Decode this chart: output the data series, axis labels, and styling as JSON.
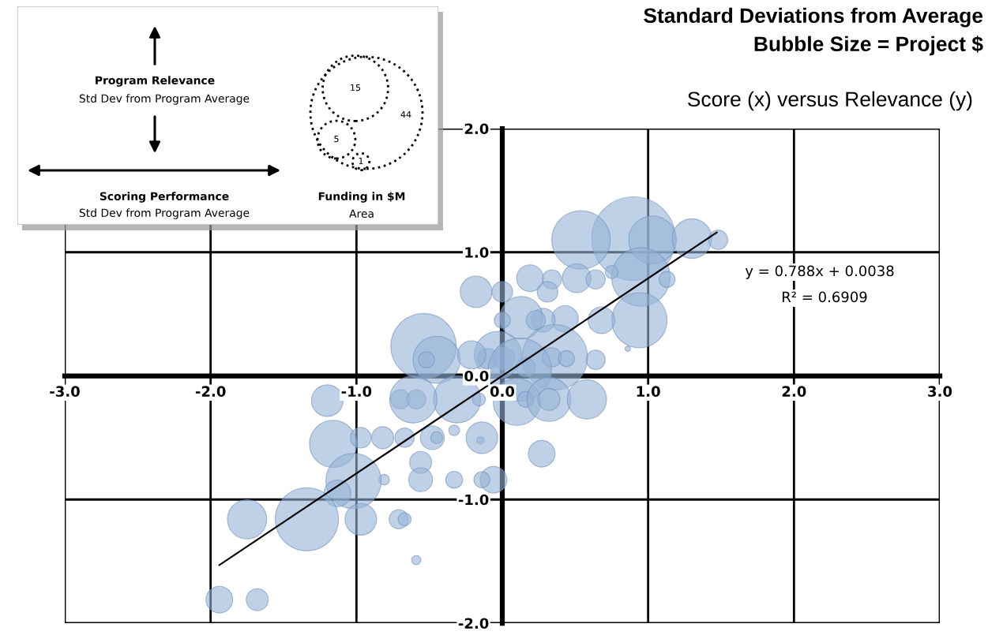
{
  "chart_data": {
    "type": "bubble",
    "title": "Standard Deviations from Average\nBubble Size = Project $",
    "subtitle": "Score (x) versus Relevance (y)",
    "xlabel": "Scoring Performance",
    "ylabel": "Program Relevance",
    "legend_title": "Funding in $M",
    "annotations": [
      "Std Dev from Program Average",
      "Std Dev from Program Average",
      "Area",
      "y = 0.788x + 0.0038",
      "R² = 0.6909"
    ],
    "size_legend": [
      44,
      15,
      5,
      1
    ],
    "xlim": [
      -3,
      3
    ],
    "ylim": [
      -2,
      2
    ],
    "xticks": [
      {
        "value": -3,
        "label": "-3.0"
      },
      {
        "value": -2,
        "label": "-2.0"
      },
      {
        "value": -1,
        "label": "-1.0"
      },
      {
        "value": 0,
        "label": "0.0"
      },
      {
        "value": 1,
        "label": "1.0"
      },
      {
        "value": 2,
        "label": "2.0"
      },
      {
        "value": 3,
        "label": "3.0"
      }
    ],
    "yticks": [
      {
        "value": -2,
        "label": "-2.0"
      },
      {
        "value": -1,
        "label": "-1.0"
      },
      {
        "value": 0,
        "label": "0.0"
      },
      {
        "value": 1,
        "label": "1.0"
      },
      {
        "value": 2,
        "label": "2.0"
      }
    ],
    "grid": true,
    "marker": "circle",
    "series": [
      {
        "color": "#95b3d7",
        "x": [
          0.9,
          0.54,
          1.03,
          1.3,
          1.48,
          0.95,
          0.51,
          0.64,
          0.75,
          1.13,
          0.94,
          0.68,
          0.43,
          0.28,
          0.64,
          0.86,
          0.34,
          0.31,
          -0.18,
          0.0,
          0.19,
          0.13,
          0.0,
          0.23,
          -0.54,
          -0.45,
          -0.52,
          -0.1,
          0.01,
          -0.03,
          0.36,
          0.34,
          0.44,
          0.16,
          -0.21,
          0.12,
          -0.31,
          -0.7,
          -0.59,
          -0.61,
          -0.16,
          0.1,
          0.16,
          0.32,
          0.32,
          0.58,
          -1.2,
          -1.16,
          -0.97,
          -0.82,
          -0.67,
          -0.48,
          -0.45,
          -0.33,
          -0.15,
          -0.14,
          0.27,
          -0.56,
          -0.56,
          -0.33,
          -0.06,
          -0.14,
          -0.81,
          -1.02,
          -1.13,
          -1.75,
          -1.34,
          -0.97,
          -0.71,
          -0.67,
          -0.59,
          -1.94,
          -1.68
        ],
        "values": [
          1.11,
          1.1,
          1.1,
          1.11,
          1.1,
          0.8,
          0.79,
          0.78,
          0.84,
          0.78,
          0.45,
          0.45,
          0.46,
          0.45,
          0.13,
          0.22,
          0.78,
          0.68,
          0.68,
          0.68,
          0.79,
          0.47,
          0.45,
          0.45,
          0.24,
          0.13,
          0.13,
          0.14,
          0.14,
          0.17,
          0.15,
          0.15,
          0.14,
          0.07,
          0.17,
          0.05,
          -0.19,
          -0.19,
          -0.19,
          -0.19,
          -0.19,
          -0.21,
          -0.19,
          -0.19,
          -0.19,
          -0.19,
          -0.2,
          -0.55,
          -0.5,
          -0.5,
          -0.5,
          -0.5,
          -0.5,
          -0.44,
          -0.52,
          -0.5,
          -0.63,
          -0.7,
          -0.84,
          -0.84,
          -0.84,
          -0.84,
          -0.84,
          -0.85,
          -0.95,
          -1.16,
          -1.16,
          -1.16,
          -1.16,
          -1.16,
          -1.49,
          -1.81,
          -1.81
        ],
        "sizes": [
          24.5,
          12,
          8,
          5.5,
          1.3,
          12,
          2.9,
          1.3,
          0.6,
          0.9,
          10.7,
          2.5,
          2.5,
          2,
          1.3,
          0.1,
          1.3,
          1.5,
          3.5,
          1.5,
          2.5,
          6.4,
          0.9,
          1.3,
          15,
          7.8,
          0.9,
          1.5,
          1.7,
          7.8,
          15,
          1.3,
          0.9,
          1.3,
          2.8,
          14,
          7.8,
          1.3,
          1.3,
          7.8,
          0.6,
          7.8,
          0.9,
          6.8,
          1.7,
          5.4,
          3.5,
          7.8,
          1.5,
          1.7,
          1.3,
          2,
          0.5,
          0.4,
          0.2,
          3.5,
          2.5,
          1.7,
          2,
          1,
          2.5,
          0.9,
          0.4,
          10.7,
          2.5,
          5.4,
          14,
          3.5,
          1.3,
          0.6,
          0.3,
          2.5,
          1.7
        ]
      },
      {
        "type": "line",
        "marker": "none",
        "color": "#000000",
        "x": [
          -1.94,
          1.47
        ],
        "values": [
          -1.53,
          1.16
        ]
      }
    ]
  }
}
